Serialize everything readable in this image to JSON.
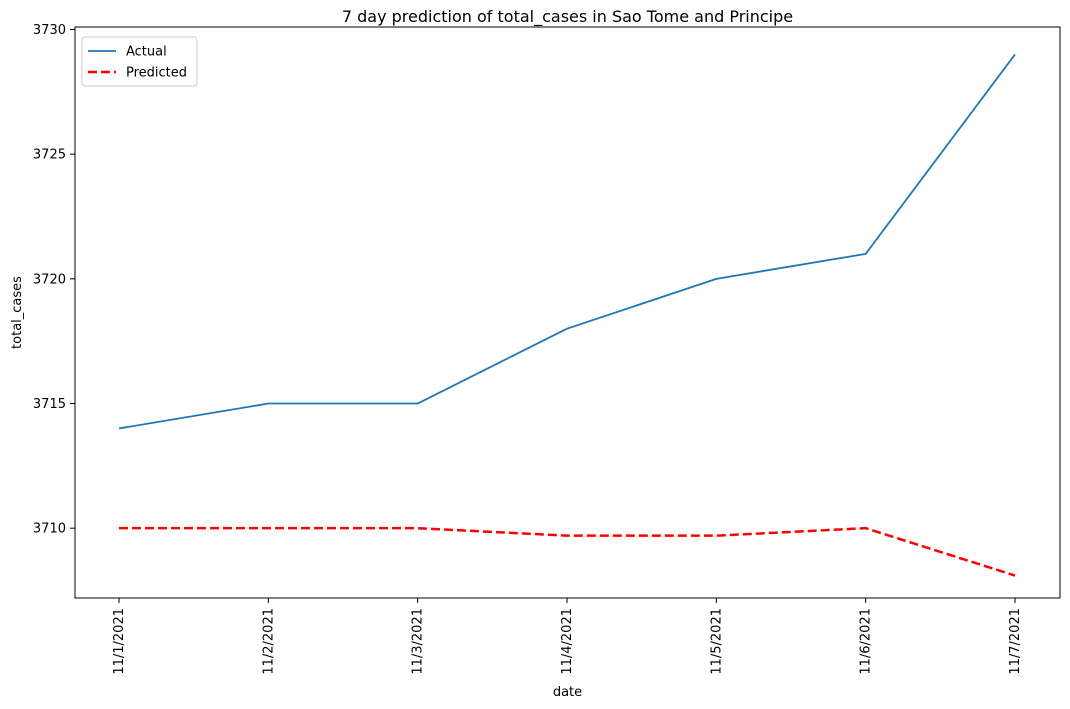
{
  "chart_data": {
    "type": "line",
    "title": "7 day prediction of total_cases in Sao Tome and Principe",
    "xlabel": "date",
    "ylabel": "total_cases",
    "categories": [
      "11/1/2021",
      "11/2/2021",
      "11/3/2021",
      "11/4/2021",
      "11/5/2021",
      "11/6/2021",
      "11/7/2021"
    ],
    "ylim": [
      3707.2,
      3730.1
    ],
    "yticks": [
      3710,
      3715,
      3720,
      3725,
      3730
    ],
    "grid": false,
    "legend_position": "top-left",
    "series": [
      {
        "name": "Actual",
        "values": [
          3714,
          3715,
          3715,
          3718,
          3720,
          3721,
          3729
        ],
        "color": "#1f77b4",
        "style": "solid"
      },
      {
        "name": "Predicted",
        "values": [
          3710,
          3710,
          3710,
          3709.7,
          3709.7,
          3710,
          3708.1
        ],
        "color": "#ff0000",
        "style": "dashed"
      }
    ]
  }
}
